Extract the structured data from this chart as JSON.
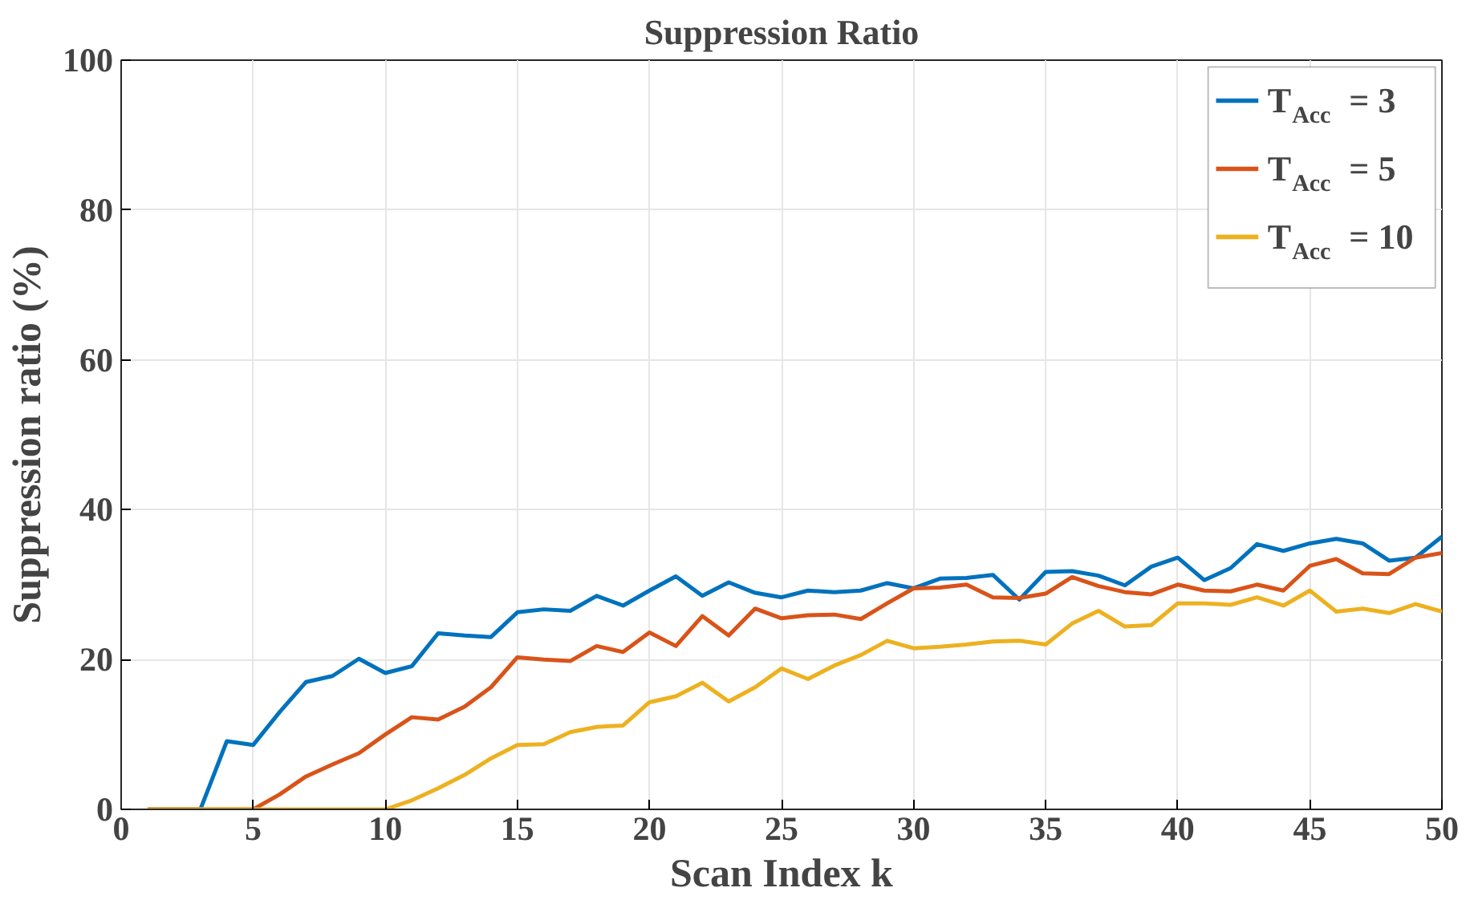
{
  "chart_data": {
    "type": "line",
    "title": "Suppression Ratio",
    "xlabel": "Scan Index k",
    "ylabel": "Suppression ratio (%)",
    "x": [
      1,
      2,
      3,
      4,
      5,
      6,
      7,
      8,
      9,
      10,
      11,
      12,
      13,
      14,
      15,
      16,
      17,
      18,
      19,
      20,
      21,
      22,
      23,
      24,
      25,
      26,
      27,
      28,
      29,
      30,
      31,
      32,
      33,
      34,
      35,
      36,
      37,
      38,
      39,
      40,
      41,
      42,
      43,
      44,
      45,
      46,
      47,
      48,
      49,
      50
    ],
    "series": [
      {
        "name": "T$_{Acc}$ = 3",
        "color": "#0072bd",
        "values": [
          0,
          0,
          0,
          9.1,
          8.6,
          13,
          17,
          17.8,
          20.1,
          18.2,
          19.1,
          23.5,
          23.2,
          23,
          26.3,
          26.7,
          26.5,
          28.5,
          27.2,
          29.2,
          31.1,
          28.5,
          30.3,
          28.9,
          28.3,
          29.2,
          29.0,
          29.2,
          30.2,
          29.5,
          30.8,
          30.9,
          31.3,
          28,
          31.7,
          31.8,
          31.2,
          29.9,
          32.4,
          33.6,
          30.6,
          32.2,
          35.4,
          34.5,
          35.5,
          36.1,
          35.5,
          33.2,
          33.6,
          36.4
        ]
      },
      {
        "name": "T$_{Acc}$ = 5",
        "color": "#d95319",
        "values": [
          0,
          0,
          0,
          0,
          0,
          2,
          4.4,
          6,
          7.5,
          10,
          12.3,
          12,
          13.7,
          16.3,
          20.3,
          20,
          19.8,
          21.8,
          21,
          23.6,
          21.8,
          25.8,
          23.2,
          26.8,
          25.5,
          25.9,
          26,
          25.4,
          27.5,
          29.5,
          29.6,
          30,
          28.3,
          28.2,
          28.8,
          31,
          29.8,
          29,
          28.7,
          30,
          29.2,
          29.1,
          30,
          29.2,
          32.5,
          33.4,
          31.5,
          31.4,
          33.6,
          34.2
        ]
      },
      {
        "name": "T$_{Acc}$ = 10",
        "color": "#edb120",
        "values": [
          0,
          0,
          0,
          0,
          0,
          0,
          0,
          0,
          0,
          0,
          1.2,
          2.8,
          4.6,
          6.8,
          8.6,
          8.7,
          10.3,
          11,
          11.2,
          14.3,
          15.1,
          16.9,
          14.4,
          16.3,
          18.8,
          17.4,
          19.2,
          20.6,
          22.5,
          21.5,
          21.7,
          22.0,
          22.4,
          22.5,
          22.0,
          24.8,
          26.5,
          24.4,
          24.6,
          27.5,
          27.5,
          27.3,
          28.3,
          27.2,
          29.2,
          26.4,
          26.8,
          26.2,
          27.4,
          26.4
        ]
      }
    ],
    "xlim": [
      0,
      50
    ],
    "xticks": [
      0,
      5,
      10,
      15,
      20,
      25,
      30,
      35,
      40,
      45,
      50
    ],
    "ylim": [
      0,
      100
    ],
    "yticks": [
      0,
      20,
      40,
      60,
      80,
      100
    ],
    "grid": true,
    "legend": "top right",
    "marker": "none",
    "line_style": "solid"
  }
}
